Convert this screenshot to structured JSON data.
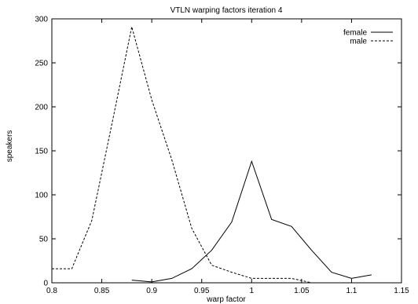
{
  "chart_data": {
    "type": "line",
    "title": "VTLN warping factors iteration 4",
    "xlabel": "warp factor",
    "ylabel": "speakers",
    "xlim": [
      0.8,
      1.15
    ],
    "ylim": [
      0,
      300
    ],
    "x_ticks": [
      "0.8",
      "0.85",
      "0.9",
      "0.95",
      "1",
      "1.05",
      "1.1",
      "1.15"
    ],
    "y_ticks": [
      "0",
      "50",
      "100",
      "150",
      "200",
      "250",
      "300"
    ],
    "grid": false,
    "legend_position": "top-right",
    "series": [
      {
        "name": "female",
        "style": "solid",
        "color": "#000000",
        "x": [
          0.88,
          0.9,
          0.92,
          0.94,
          0.96,
          0.98,
          1.0,
          1.02,
          1.04,
          1.06,
          1.08,
          1.1,
          1.12
        ],
        "y": [
          3,
          1,
          5,
          16,
          37,
          69,
          138,
          72,
          64,
          37,
          12,
          5,
          9
        ]
      },
      {
        "name": "male",
        "style": "dashed",
        "color": "#000000",
        "x": [
          0.8,
          0.82,
          0.84,
          0.86,
          0.88,
          0.9,
          0.92,
          0.94,
          0.96,
          0.98,
          1.0,
          1.02,
          1.04,
          1.06
        ],
        "y": [
          16,
          16,
          71,
          180,
          291,
          208,
          140,
          62,
          20,
          12,
          5,
          5,
          5,
          0
        ]
      }
    ]
  }
}
